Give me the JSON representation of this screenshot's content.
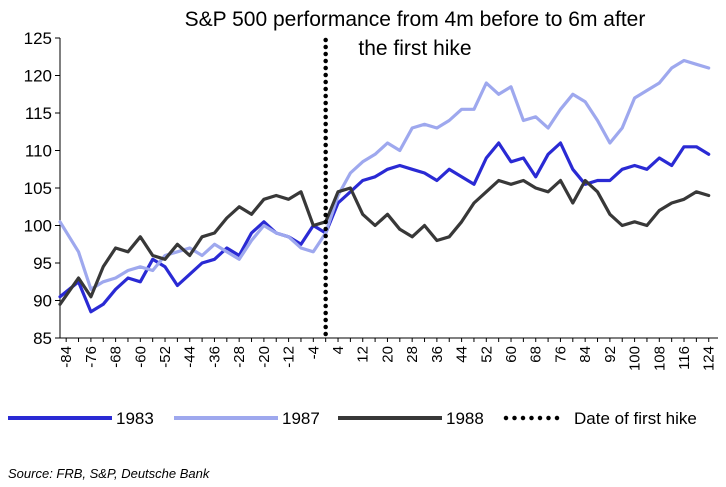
{
  "chart_data": {
    "type": "line",
    "title_lines": [
      "S&P 500 performance from 4m before to 6m after",
      "the first hike"
    ],
    "x_tick_labels": [
      "-84",
      "-76",
      "-68",
      "-60",
      "-52",
      "-44",
      "-36",
      "-28",
      "-20",
      "-12",
      "-4",
      "4",
      "12",
      "20",
      "28",
      "36",
      "44",
      "52",
      "60",
      "68",
      "76",
      "84",
      "92",
      "100",
      "108",
      "116",
      "124"
    ],
    "xlim": [
      -86,
      127
    ],
    "ylim": [
      85,
      125
    ],
    "y_ticks": [
      85,
      90,
      95,
      100,
      105,
      110,
      115,
      120,
      125
    ],
    "grid": false,
    "legend_position": "bottom",
    "first_hike_x": 0,
    "x": [
      -86,
      -80,
      -76,
      -72,
      -68,
      -64,
      -60,
      -56,
      -52,
      -48,
      -44,
      -40,
      -36,
      -32,
      -28,
      -24,
      -20,
      -16,
      -12,
      -8,
      -4,
      0,
      4,
      8,
      12,
      16,
      20,
      24,
      28,
      32,
      36,
      40,
      44,
      48,
      52,
      56,
      60,
      64,
      68,
      72,
      76,
      80,
      84,
      88,
      92,
      96,
      100,
      104,
      108,
      112,
      116,
      120,
      124
    ],
    "series": [
      {
        "name": "1983",
        "color": "#2a2ad4",
        "values": [
          90.5,
          92.5,
          88.5,
          89.5,
          91.5,
          93.0,
          92.5,
          95.5,
          94.5,
          92.0,
          93.5,
          95.0,
          95.5,
          97.0,
          96.0,
          99.0,
          100.5,
          99.0,
          98.5,
          97.5,
          100.0,
          99.0,
          103.0,
          104.5,
          106.0,
          106.5,
          107.5,
          108.0,
          107.5,
          107.0,
          106.0,
          107.5,
          106.5,
          105.5,
          109.0,
          111.0,
          108.5,
          109.0,
          106.5,
          109.5,
          111.0,
          107.5,
          105.5,
          106.0,
          106.0,
          107.5,
          108.0,
          107.5,
          109.0,
          108.0,
          110.5,
          110.5,
          109.5
        ]
      },
      {
        "name": "1987",
        "color": "#9ea8ee",
        "values": [
          100.5,
          96.5,
          91.5,
          92.5,
          93.0,
          94.0,
          94.5,
          94.0,
          96.0,
          96.5,
          97.0,
          96.0,
          97.5,
          96.5,
          95.5,
          98.0,
          100.0,
          99.0,
          98.5,
          97.0,
          96.5,
          99.0,
          104.0,
          107.0,
          108.5,
          109.5,
          111.0,
          110.0,
          113.0,
          113.5,
          113.0,
          114.0,
          115.5,
          115.5,
          119.0,
          117.5,
          118.5,
          114.0,
          114.5,
          113.0,
          115.5,
          117.5,
          116.5,
          114.0,
          111.0,
          113.0,
          117.0,
          118.0,
          119.0,
          121.0,
          122.0,
          121.5,
          121.0
        ]
      },
      {
        "name": "1988",
        "color": "#383838",
        "values": [
          89.5,
          93.0,
          90.5,
          94.5,
          97.0,
          96.5,
          98.5,
          96.0,
          95.5,
          97.5,
          96.0,
          98.5,
          99.0,
          101.0,
          102.5,
          101.5,
          103.5,
          104.0,
          103.5,
          104.5,
          100.0,
          100.5,
          104.5,
          105.0,
          101.5,
          100.0,
          101.5,
          99.5,
          98.5,
          100.0,
          98.0,
          98.5,
          100.5,
          103.0,
          104.5,
          106.0,
          105.5,
          106.0,
          105.0,
          104.5,
          106.0,
          103.0,
          106.0,
          104.5,
          101.5,
          100.0,
          100.5,
          100.0,
          102.0,
          103.0,
          103.5,
          104.5,
          104.0
        ]
      }
    ],
    "hike_series": {
      "name": "Date of first hike"
    }
  },
  "source": "Source: FRB, S&P, Deutsche Bank"
}
